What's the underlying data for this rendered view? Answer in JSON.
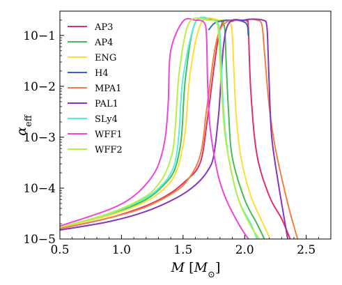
{
  "chart_data": {
    "type": "line",
    "xlabel": "M [M⊙]",
    "ylabel": "αeff",
    "xlim": [
      0.5,
      2.7
    ],
    "ylim": [
      1e-05,
      0.3
    ],
    "y_scale": "log",
    "x_ticks": [
      "0.5",
      "1.0",
      "1.5",
      "2.0",
      "2.5"
    ],
    "y_ticks": [
      "10−5",
      "10−4",
      "10−3",
      "10−2",
      "10−1"
    ],
    "grid": false,
    "legend_position": "top-left",
    "series": [
      {
        "name": "AP3",
        "color": "#e0305f",
        "x": [
          0.5,
          0.9,
          1.2,
          1.4,
          1.55,
          1.62,
          1.66,
          1.7,
          1.8,
          1.9,
          1.97,
          2.0,
          2.02,
          2.03,
          2.05,
          2.1,
          2.2,
          2.3,
          2.37
        ],
        "y": [
          1.6e-05,
          2.6e-05,
          4.5e-05,
          8e-05,
          0.00016,
          0.00025,
          0.0005,
          0.0025,
          0.13,
          0.19,
          0.2,
          0.2,
          0.19,
          0.15,
          0.008,
          0.00045,
          7e-05,
          2.5e-05,
          1e-05
        ]
      },
      {
        "name": "AP4",
        "color": "#44bb55",
        "x": [
          0.5,
          0.9,
          1.2,
          1.35,
          1.42,
          1.46,
          1.49,
          1.52,
          1.6,
          1.75,
          1.82,
          1.84,
          1.85,
          1.87,
          1.9,
          2.0,
          2.1,
          2.16
        ],
        "y": [
          1.7e-05,
          3e-05,
          6e-05,
          0.00012,
          0.0002,
          0.0004,
          0.0012,
          0.015,
          0.18,
          0.2,
          0.18,
          0.12,
          0.03,
          0.003,
          0.0004,
          6e-05,
          2e-05,
          1e-05
        ]
      },
      {
        "name": "ENG",
        "color": "#ffdd33",
        "x": [
          0.5,
          0.9,
          1.2,
          1.37,
          1.44,
          1.48,
          1.52,
          1.56,
          1.65,
          1.8,
          1.88,
          1.9,
          1.91,
          1.93,
          1.97,
          2.05,
          2.15,
          2.2
        ],
        "y": [
          1.7e-05,
          2.9e-05,
          5.5e-05,
          0.00011,
          0.0002,
          0.0004,
          0.0015,
          0.02,
          0.18,
          0.2,
          0.18,
          0.1,
          0.03,
          0.003,
          0.0004,
          7e-05,
          2e-05,
          1.1e-05
        ]
      },
      {
        "name": "H4",
        "color": "#3366cc",
        "x": [
          1.71,
          1.75,
          1.8,
          1.9,
          1.98,
          2.02,
          2.03
        ],
        "y": [
          0.13,
          0.17,
          0.19,
          0.2,
          0.19,
          0.16,
          0.1
        ]
      },
      {
        "name": "MPA1",
        "color": "#f08040",
        "x": [
          0.5,
          0.9,
          1.2,
          1.45,
          1.55,
          1.62,
          1.66,
          1.7,
          1.8,
          2.0,
          2.1,
          2.14,
          2.16,
          2.2,
          2.25,
          2.35,
          2.43
        ],
        "y": [
          1.6e-05,
          2.6e-05,
          4.3e-05,
          9e-05,
          0.00016,
          0.00032,
          0.0008,
          0.005,
          0.13,
          0.2,
          0.2,
          0.16,
          0.05,
          0.004,
          0.0006,
          5e-05,
          1e-05
        ]
      },
      {
        "name": "PAL1",
        "color": "#8833bb",
        "x": [
          0.5,
          0.9,
          1.2,
          1.45,
          1.6,
          1.7,
          1.75,
          1.79,
          1.85,
          2.0,
          2.15,
          2.18,
          2.19,
          2.2,
          2.22,
          2.28,
          2.35
        ],
        "y": [
          1.5e-05,
          2.2e-05,
          3.5e-05,
          6.5e-05,
          0.000115,
          0.00022,
          0.00045,
          0.003,
          0.13,
          0.2,
          0.2,
          0.15,
          0.05,
          0.01,
          0.001,
          0.0001,
          1e-05
        ]
      },
      {
        "name": "SLy4",
        "color": "#55eedd",
        "x": [
          0.5,
          0.9,
          1.2,
          1.35,
          1.42,
          1.45,
          1.47,
          1.5,
          1.6,
          1.72,
          1.78,
          1.8,
          1.81,
          1.83,
          1.87,
          1.95,
          2.05,
          2.1
        ],
        "y": [
          1.7e-05,
          3.1e-05,
          6.5e-05,
          0.00013,
          0.00025,
          0.0005,
          0.0015,
          0.015,
          0.18,
          0.2,
          0.18,
          0.1,
          0.03,
          0.003,
          0.0004,
          6e-05,
          2e-05,
          1e-05
        ]
      },
      {
        "name": "WFF1",
        "color": "#ee44dd",
        "x": [
          0.5,
          0.9,
          1.1,
          1.25,
          1.32,
          1.36,
          1.38,
          1.4,
          1.5,
          1.6,
          1.67,
          1.69,
          1.7,
          1.72,
          1.78,
          1.85,
          1.95,
          2.03
        ],
        "y": [
          1.8e-05,
          3.8e-05,
          7e-05,
          0.00017,
          0.0004,
          0.0012,
          0.005,
          0.05,
          0.19,
          0.2,
          0.18,
          0.1,
          0.01,
          0.0015,
          0.0002,
          6e-05,
          2e-05,
          1e-05
        ]
      },
      {
        "name": "WFF2",
        "color": "#bbee44",
        "x": [
          0.5,
          0.9,
          1.2,
          1.32,
          1.38,
          1.42,
          1.44,
          1.47,
          1.55,
          1.7,
          1.77,
          1.79,
          1.8,
          1.83,
          1.87,
          1.95,
          2.05,
          2.12
        ],
        "y": [
          1.7e-05,
          3.2e-05,
          7e-05,
          0.00014,
          0.00027,
          0.0006,
          0.002,
          0.02,
          0.18,
          0.2,
          0.18,
          0.1,
          0.03,
          0.002,
          0.0004,
          6e-05,
          1.8e-05,
          1e-05
        ]
      }
    ]
  }
}
